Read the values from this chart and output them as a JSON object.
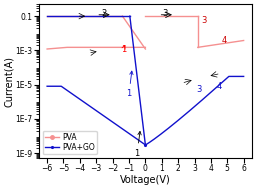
{
  "xlabel": "Voltage(V)",
  "ylabel": "Current(A)",
  "xlim": [
    -6.5,
    6.5
  ],
  "xticks": [
    -6,
    -5,
    -4,
    -3,
    -2,
    -1,
    0,
    1,
    2,
    3,
    4,
    5,
    6
  ],
  "yticks": [
    1e-09,
    1e-07,
    1e-05,
    0.001,
    0.1
  ],
  "ytick_labels": [
    "1E-9",
    "1E-7",
    "1E-5",
    "1E-3",
    "0.1"
  ],
  "pva_color": "#f59090",
  "go_color": "#1111cc",
  "legend_pva": "PVA",
  "legend_go": "PVA+GO"
}
